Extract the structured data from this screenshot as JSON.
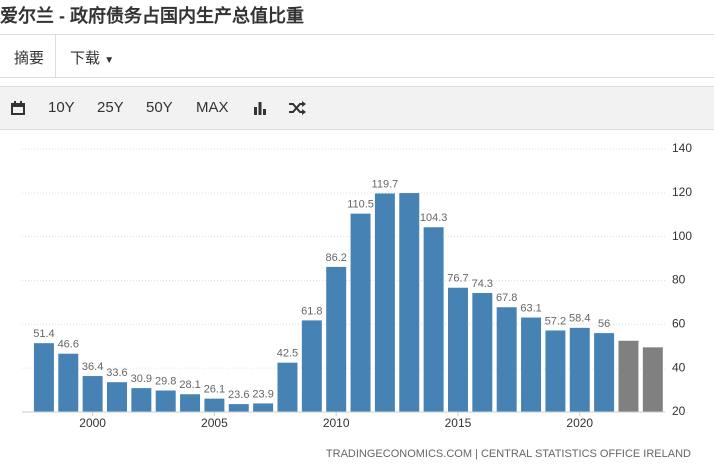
{
  "header": {
    "title": "爱尔兰 - 政府债务占国内生产总值比重"
  },
  "tabs": [
    "摘要",
    "下载"
  ],
  "toolbar": {
    "ranges": [
      "10Y",
      "25Y",
      "50Y",
      "MAX"
    ]
  },
  "chart_data": {
    "type": "bar",
    "x": [
      1998,
      1999,
      2000,
      2001,
      2002,
      2003,
      2004,
      2005,
      2006,
      2007,
      2008,
      2009,
      2010,
      2011,
      2012,
      2013,
      2014,
      2015,
      2016,
      2017,
      2018,
      2019,
      2020,
      2021,
      2022,
      2023
    ],
    "values": [
      51.4,
      46.6,
      36.4,
      33.6,
      30.9,
      29.8,
      28.1,
      26.1,
      23.6,
      23.9,
      42.5,
      61.8,
      86.2,
      110.5,
      119.7,
      119.9,
      104.3,
      76.7,
      74.3,
      67.8,
      63.1,
      57.2,
      58.4,
      56,
      52.5,
      49.5
    ],
    "value_labels": [
      "51.4",
      "46.6",
      "36.4",
      "33.6",
      "30.9",
      "29.8",
      "28.1",
      "26.1",
      "23.6",
      "23.9",
      "42.5",
      "61.8",
      "86.2",
      "110.5",
      "119.7",
      null,
      "104.3",
      "76.7",
      "74.3",
      "67.8",
      "63.1",
      "57.2",
      "58.4",
      "56",
      null,
      null
    ],
    "colors": [
      "#4682b4",
      "#4682b4",
      "#4682b4",
      "#4682b4",
      "#4682b4",
      "#4682b4",
      "#4682b4",
      "#4682b4",
      "#4682b4",
      "#4682b4",
      "#4682b4",
      "#4682b4",
      "#4682b4",
      "#4682b4",
      "#4682b4",
      "#4682b4",
      "#4682b4",
      "#4682b4",
      "#4682b4",
      "#4682b4",
      "#4682b4",
      "#4682b4",
      "#4682b4",
      "#4682b4",
      "#808080",
      "#808080"
    ],
    "xlim": [
      1997.1,
      2023.5
    ],
    "xticks": [
      2000,
      2005,
      2010,
      2015,
      2020
    ],
    "ylim": [
      20,
      140
    ],
    "yticks": [
      20,
      40,
      60,
      80,
      100,
      120,
      140
    ],
    "grid": true,
    "source": "TRADINGECONOMICS.COM | CENTRAL STATISTICS OFFICE IRELAND"
  }
}
